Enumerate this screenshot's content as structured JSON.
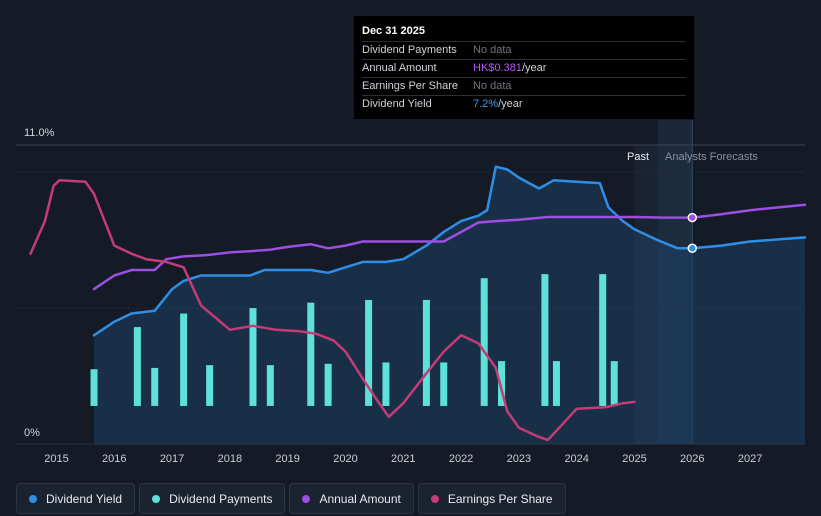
{
  "chart_data": {
    "type": "line",
    "title": "",
    "xlabel": "",
    "ylabel": "",
    "ylim": [
      0,
      11.0
    ],
    "xlim": [
      2014.3,
      2027.95
    ],
    "y_labels": {
      "top": "11.0%",
      "bottom": "0%"
    },
    "x_ticks": [
      {
        "value": 2015,
        "label": "2015"
      },
      {
        "value": 2016,
        "label": "2016"
      },
      {
        "value": 2017,
        "label": "2017"
      },
      {
        "value": 2018,
        "label": "2018"
      },
      {
        "value": 2019,
        "label": "2019"
      },
      {
        "value": 2020,
        "label": "2020"
      },
      {
        "value": 2021,
        "label": "2021"
      },
      {
        "value": 2022,
        "label": "2022"
      },
      {
        "value": 2023,
        "label": "2023"
      },
      {
        "value": 2024,
        "label": "2024"
      },
      {
        "value": 2025,
        "label": "2025"
      },
      {
        "value": 2026,
        "label": "2026"
      },
      {
        "value": 2027,
        "label": "2027"
      }
    ],
    "regions": {
      "past_label": "Past",
      "forecast_label": "Analysts Forecasts",
      "forecast_start": 2025.0,
      "highlight_start": 2025.4,
      "current": 2026.0
    },
    "series": [
      {
        "name": "Dividend Yield",
        "color": "#2f8fe6",
        "unit": "%",
        "fill": true,
        "points": [
          [
            2015.65,
            4.0
          ],
          [
            2016.0,
            4.5
          ],
          [
            2016.3,
            4.8
          ],
          [
            2016.7,
            4.9
          ],
          [
            2017.0,
            5.7
          ],
          [
            2017.2,
            6.0
          ],
          [
            2017.5,
            6.2
          ],
          [
            2018.0,
            6.2
          ],
          [
            2018.35,
            6.2
          ],
          [
            2018.6,
            6.4
          ],
          [
            2019.0,
            6.4
          ],
          [
            2019.4,
            6.4
          ],
          [
            2019.7,
            6.3
          ],
          [
            2020.0,
            6.5
          ],
          [
            2020.3,
            6.7
          ],
          [
            2020.7,
            6.7
          ],
          [
            2021.0,
            6.8
          ],
          [
            2021.4,
            7.3
          ],
          [
            2021.7,
            7.8
          ],
          [
            2022.0,
            8.2
          ],
          [
            2022.3,
            8.4
          ],
          [
            2022.45,
            8.6
          ],
          [
            2022.6,
            10.2
          ],
          [
            2022.8,
            10.1
          ],
          [
            2023.0,
            9.8
          ],
          [
            2023.35,
            9.4
          ],
          [
            2023.6,
            9.7
          ],
          [
            2024.0,
            9.65
          ],
          [
            2024.4,
            9.6
          ],
          [
            2024.55,
            8.7
          ],
          [
            2024.8,
            8.2
          ],
          [
            2025.0,
            7.9
          ],
          [
            2025.4,
            7.5
          ],
          [
            2025.75,
            7.2
          ],
          [
            2026.0,
            7.2
          ],
          [
            2026.5,
            7.3
          ],
          [
            2027.0,
            7.45
          ],
          [
            2027.95,
            7.6
          ]
        ]
      },
      {
        "name": "Annual Amount",
        "color": "#9c4fe0",
        "unit": "HK$",
        "points": [
          [
            2015.65,
            5.7
          ],
          [
            2016.0,
            6.2
          ],
          [
            2016.3,
            6.4
          ],
          [
            2016.7,
            6.4
          ],
          [
            2016.9,
            6.8
          ],
          [
            2017.2,
            6.9
          ],
          [
            2017.6,
            6.95
          ],
          [
            2018.0,
            7.05
          ],
          [
            2018.4,
            7.1
          ],
          [
            2018.7,
            7.15
          ],
          [
            2019.0,
            7.25
          ],
          [
            2019.4,
            7.35
          ],
          [
            2019.7,
            7.2
          ],
          [
            2020.0,
            7.3
          ],
          [
            2020.3,
            7.45
          ],
          [
            2020.7,
            7.45
          ],
          [
            2021.0,
            7.45
          ],
          [
            2021.4,
            7.45
          ],
          [
            2021.7,
            7.45
          ],
          [
            2022.0,
            7.8
          ],
          [
            2022.3,
            8.15
          ],
          [
            2022.6,
            8.2
          ],
          [
            2023.0,
            8.25
          ],
          [
            2023.5,
            8.35
          ],
          [
            2024.0,
            8.35
          ],
          [
            2024.5,
            8.35
          ],
          [
            2025.0,
            8.35
          ],
          [
            2025.5,
            8.33
          ],
          [
            2026.0,
            8.33
          ],
          [
            2026.5,
            8.45
          ],
          [
            2027.0,
            8.6
          ],
          [
            2027.95,
            8.8
          ]
        ]
      },
      {
        "name": "Earnings Per Share",
        "color": "#c43b78",
        "unit": "",
        "points": [
          [
            2014.55,
            7.0
          ],
          [
            2014.8,
            8.2
          ],
          [
            2014.95,
            9.5
          ],
          [
            2015.05,
            9.7
          ],
          [
            2015.5,
            9.65
          ],
          [
            2015.65,
            9.2
          ],
          [
            2016.0,
            7.3
          ],
          [
            2016.3,
            7.0
          ],
          [
            2016.55,
            6.8
          ],
          [
            2016.9,
            6.7
          ],
          [
            2017.2,
            6.5
          ],
          [
            2017.5,
            5.1
          ],
          [
            2018.0,
            4.2
          ],
          [
            2018.4,
            4.35
          ],
          [
            2018.8,
            4.2
          ],
          [
            2019.2,
            4.15
          ],
          [
            2019.5,
            4.05
          ],
          [
            2019.8,
            3.8
          ],
          [
            2020.0,
            3.4
          ],
          [
            2020.3,
            2.4
          ],
          [
            2020.55,
            1.6
          ],
          [
            2020.75,
            1.0
          ],
          [
            2021.0,
            1.5
          ],
          [
            2021.4,
            2.6
          ],
          [
            2021.7,
            3.4
          ],
          [
            2022.0,
            4.0
          ],
          [
            2022.3,
            3.7
          ],
          [
            2022.6,
            2.8
          ],
          [
            2022.8,
            1.2
          ],
          [
            2023.0,
            0.6
          ],
          [
            2023.3,
            0.3
          ],
          [
            2023.5,
            0.15
          ],
          [
            2023.7,
            0.6
          ],
          [
            2024.0,
            1.3
          ],
          [
            2024.5,
            1.35
          ],
          [
            2024.8,
            1.5
          ],
          [
            2025.0,
            1.55
          ]
        ]
      }
    ],
    "bars": {
      "name": "Dividend Payments",
      "color": "#5ee1da",
      "items": [
        {
          "x": 2015.65,
          "value": 1.35
        },
        {
          "x": 2016.4,
          "value": 2.9
        },
        {
          "x": 2016.7,
          "value": 1.4
        },
        {
          "x": 2017.2,
          "value": 3.4
        },
        {
          "x": 2017.65,
          "value": 1.5
        },
        {
          "x": 2018.4,
          "value": 3.6
        },
        {
          "x": 2018.7,
          "value": 1.5
        },
        {
          "x": 2019.4,
          "value": 3.8
        },
        {
          "x": 2019.7,
          "value": 1.55
        },
        {
          "x": 2020.4,
          "value": 3.9
        },
        {
          "x": 2020.7,
          "value": 1.6
        },
        {
          "x": 2021.4,
          "value": 3.9
        },
        {
          "x": 2021.7,
          "value": 1.6
        },
        {
          "x": 2022.4,
          "value": 4.7
        },
        {
          "x": 2022.7,
          "value": 1.65
        },
        {
          "x": 2023.45,
          "value": 4.85
        },
        {
          "x": 2023.65,
          "value": 1.65
        },
        {
          "x": 2024.45,
          "value": 4.85
        },
        {
          "x": 2024.65,
          "value": 1.65
        }
      ]
    },
    "markers": [
      {
        "series": "Annual Amount",
        "x": 2026.0,
        "value": 8.33,
        "color": "#9c4fe0"
      },
      {
        "series": "Dividend Yield",
        "x": 2026.0,
        "value": 7.2,
        "color": "#2f8fe6"
      }
    ]
  },
  "tooltip": {
    "date": "Dec 31 2025",
    "rows": [
      {
        "label": "Dividend Payments",
        "value": "No data",
        "unit": ""
      },
      {
        "label": "Annual Amount",
        "value": "HK$0.381",
        "unit": "/year"
      },
      {
        "label": "Earnings Per Share",
        "value": "No data",
        "unit": ""
      },
      {
        "label": "Dividend Yield",
        "value": "7.2%",
        "unit": "/year"
      }
    ]
  },
  "legend": [
    {
      "label": "Dividend Yield",
      "color": "#2f8fe6"
    },
    {
      "label": "Dividend Payments",
      "color": "#5ee1da"
    },
    {
      "label": "Annual Amount",
      "color": "#9c4fe0"
    },
    {
      "label": "Earnings Per Share",
      "color": "#c43b78"
    }
  ]
}
